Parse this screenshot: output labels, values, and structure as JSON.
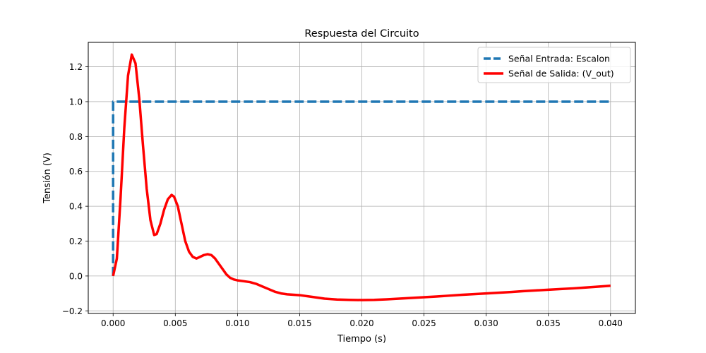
{
  "chart_data": {
    "type": "line",
    "title": "Respuesta del Circuito",
    "xlabel": "Tiempo (s)",
    "ylabel": "Tensión (V)",
    "xlim": [
      -0.002,
      0.042
    ],
    "ylim": [
      -0.215,
      1.34
    ],
    "xticks": [
      0.0,
      0.005,
      0.01,
      0.015,
      0.02,
      0.025,
      0.03,
      0.035,
      0.04
    ],
    "xtick_labels": [
      "0.000",
      "0.005",
      "0.010",
      "0.015",
      "0.020",
      "0.025",
      "0.030",
      "0.035",
      "0.040"
    ],
    "yticks": [
      -0.2,
      0.0,
      0.2,
      0.4,
      0.6,
      0.8,
      1.0,
      1.2
    ],
    "ytick_labels": [
      "−0.2",
      "0.0",
      "0.2",
      "0.4",
      "0.6",
      "0.8",
      "1.0",
      "1.2"
    ],
    "grid": true,
    "legend_position": "top-right",
    "series": [
      {
        "name": "Señal Entrada: Escalon",
        "color": "#1f77b4",
        "style": "dashed",
        "x": [
          0.0,
          0.0,
          0.04
        ],
        "y": [
          0.0,
          1.0,
          1.0
        ]
      },
      {
        "name": "Señal de Salida: (V_out)",
        "color": "#ff0000",
        "style": "solid",
        "x": [
          0.0,
          0.0003,
          0.0006,
          0.0009,
          0.0012,
          0.0015,
          0.0018,
          0.0021,
          0.0024,
          0.0027,
          0.003,
          0.0033,
          0.0035,
          0.0038,
          0.0041,
          0.0044,
          0.0047,
          0.0049,
          0.0052,
          0.0055,
          0.0058,
          0.0061,
          0.0064,
          0.0067,
          0.007,
          0.0073,
          0.0076,
          0.0079,
          0.0082,
          0.0085,
          0.0088,
          0.0091,
          0.0094,
          0.0097,
          0.01,
          0.0105,
          0.011,
          0.0115,
          0.012,
          0.0125,
          0.013,
          0.0135,
          0.014,
          0.015,
          0.016,
          0.017,
          0.018,
          0.019,
          0.02,
          0.021,
          0.022,
          0.023,
          0.024,
          0.025,
          0.026,
          0.027,
          0.028,
          0.029,
          0.03,
          0.031,
          0.032,
          0.033,
          0.034,
          0.035,
          0.036,
          0.037,
          0.038,
          0.039,
          0.04
        ],
        "y": [
          0.0,
          0.1,
          0.45,
          0.85,
          1.15,
          1.27,
          1.22,
          1.02,
          0.75,
          0.5,
          0.32,
          0.235,
          0.24,
          0.3,
          0.38,
          0.44,
          0.465,
          0.455,
          0.4,
          0.3,
          0.2,
          0.14,
          0.11,
          0.1,
          0.11,
          0.12,
          0.125,
          0.12,
          0.1,
          0.07,
          0.04,
          0.01,
          -0.01,
          -0.02,
          -0.025,
          -0.03,
          -0.035,
          -0.045,
          -0.06,
          -0.075,
          -0.09,
          -0.1,
          -0.105,
          -0.11,
          -0.12,
          -0.13,
          -0.135,
          -0.137,
          -0.138,
          -0.137,
          -0.134,
          -0.13,
          -0.126,
          -0.122,
          -0.118,
          -0.113,
          -0.108,
          -0.104,
          -0.1,
          -0.096,
          -0.092,
          -0.087,
          -0.083,
          -0.079,
          -0.075,
          -0.071,
          -0.066,
          -0.061,
          -0.056
        ]
      }
    ]
  }
}
